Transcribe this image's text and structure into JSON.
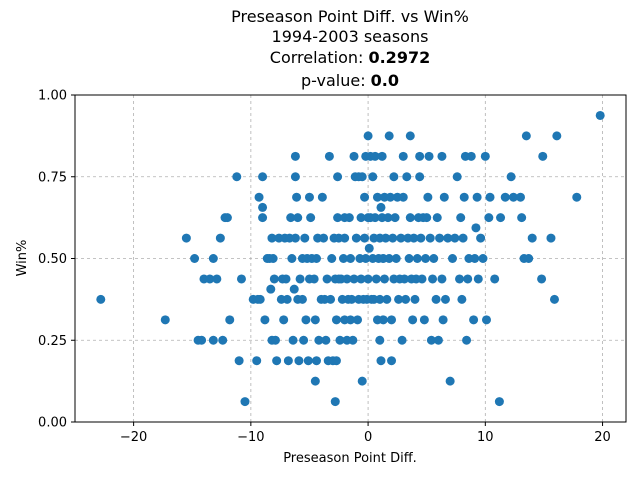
{
  "chart_data": {
    "type": "scatter",
    "title": "Preseason Point Diff. vs Win%",
    "subtitle": "1994-2003 seasons",
    "correlation_label": "Correlation: ",
    "correlation_value": "0.2972",
    "pvalue_label": "p-value: ",
    "pvalue_value": "0.0",
    "xlabel": "Preseason Point Diff.",
    "ylabel": "Win%",
    "xlim": [
      -25,
      22
    ],
    "ylim": [
      0.0,
      1.0
    ],
    "xticks": [
      -20,
      -10,
      0,
      10,
      20
    ],
    "xtick_labels": [
      "−20",
      "−10",
      "0",
      "10",
      "20"
    ],
    "yticks": [
      0.0,
      0.25,
      0.5,
      0.75,
      1.0
    ],
    "ytick_labels": [
      "0.00",
      "0.25",
      "0.50",
      "0.75",
      "1.00"
    ],
    "grid": true,
    "marker_color": "#1f77b4",
    "points": [
      [
        -22.8,
        0.375
      ],
      [
        -17.3,
        0.3125
      ],
      [
        -15.5,
        0.5625
      ],
      [
        -14.8,
        0.5
      ],
      [
        -14.5,
        0.25
      ],
      [
        -14.2,
        0.25
      ],
      [
        -14.0,
        0.4375
      ],
      [
        -13.5,
        0.4375
      ],
      [
        -13.2,
        0.5
      ],
      [
        -13.2,
        0.25
      ],
      [
        -12.9,
        0.4375
      ],
      [
        -12.6,
        0.5625
      ],
      [
        -12.4,
        0.25
      ],
      [
        -12.2,
        0.625
      ],
      [
        -12.0,
        0.625
      ],
      [
        -11.8,
        0.3125
      ],
      [
        -11.2,
        0.75
      ],
      [
        -11.0,
        0.1875
      ],
      [
        -10.8,
        0.4375
      ],
      [
        -10.5,
        0.0625
      ],
      [
        -9.8,
        0.375
      ],
      [
        -9.5,
        0.1875
      ],
      [
        -9.4,
        0.375
      ],
      [
        -9.3,
        0.6875
      ],
      [
        -9.2,
        0.375
      ],
      [
        -9.0,
        0.75
      ],
      [
        -9.0,
        0.625
      ],
      [
        -9.0,
        0.65625
      ],
      [
        -8.8,
        0.3125
      ],
      [
        -8.6,
        0.5
      ],
      [
        -8.4,
        0.5
      ],
      [
        -8.3,
        0.40625
      ],
      [
        -8.2,
        0.5625
      ],
      [
        -8.2,
        0.25
      ],
      [
        -8.1,
        0.5
      ],
      [
        -8.0,
        0.4375
      ],
      [
        -7.9,
        0.25
      ],
      [
        -7.8,
        0.1875
      ],
      [
        -7.6,
        0.5625
      ],
      [
        -7.4,
        0.375
      ],
      [
        -7.3,
        0.4375
      ],
      [
        -7.2,
        0.3125
      ],
      [
        -7.1,
        0.5625
      ],
      [
        -7.0,
        0.4375
      ],
      [
        -6.9,
        0.375
      ],
      [
        -6.8,
        0.1875
      ],
      [
        -6.7,
        0.5625
      ],
      [
        -6.6,
        0.625
      ],
      [
        -6.5,
        0.5
      ],
      [
        -6.4,
        0.25
      ],
      [
        -6.3,
        0.40625
      ],
      [
        -6.2,
        0.8125
      ],
      [
        -6.2,
        0.75
      ],
      [
        -6.2,
        0.5625
      ],
      [
        -6.1,
        0.6875
      ],
      [
        -6.0,
        0.625
      ],
      [
        -6.0,
        0.375
      ],
      [
        -5.9,
        0.1875
      ],
      [
        -5.8,
        0.4375
      ],
      [
        -5.6,
        0.375
      ],
      [
        -5.6,
        0.5
      ],
      [
        -5.5,
        0.25
      ],
      [
        -5.4,
        0.5625
      ],
      [
        -5.3,
        0.3125
      ],
      [
        -5.2,
        0.5
      ],
      [
        -5.1,
        0.1875
      ],
      [
        -5.0,
        0.4375
      ],
      [
        -5.0,
        0.6875
      ],
      [
        -4.9,
        0.625
      ],
      [
        -4.8,
        0.5
      ],
      [
        -4.6,
        0.4375
      ],
      [
        -4.5,
        0.3125
      ],
      [
        -4.5,
        0.125
      ],
      [
        -4.4,
        0.5
      ],
      [
        -4.4,
        0.1875
      ],
      [
        -4.3,
        0.5625
      ],
      [
        -4.2,
        0.25
      ],
      [
        -4.0,
        0.375
      ],
      [
        -3.9,
        0.6875
      ],
      [
        -3.8,
        0.5625
      ],
      [
        -3.7,
        0.375
      ],
      [
        -3.6,
        0.25
      ],
      [
        -3.5,
        0.4375
      ],
      [
        -3.4,
        0.1875
      ],
      [
        -3.3,
        0.8125
      ],
      [
        -3.2,
        0.375
      ],
      [
        -3.1,
        0.5
      ],
      [
        -3.0,
        0.1875
      ],
      [
        -2.9,
        0.5625
      ],
      [
        -2.8,
        0.4375
      ],
      [
        -2.8,
        0.0625
      ],
      [
        -2.7,
        0.1875
      ],
      [
        -2.7,
        0.3125
      ],
      [
        -2.6,
        0.625
      ],
      [
        -2.6,
        0.75
      ],
      [
        -2.5,
        0.4375
      ],
      [
        -2.5,
        0.5625
      ],
      [
        -2.4,
        0.25
      ],
      [
        -2.3,
        0.4375
      ],
      [
        -2.2,
        0.375
      ],
      [
        -2.1,
        0.5
      ],
      [
        -2.0,
        0.625
      ],
      [
        -2.0,
        0.3125
      ],
      [
        -2.0,
        0.5625
      ],
      [
        -1.8,
        0.4375
      ],
      [
        -1.8,
        0.25
      ],
      [
        -1.7,
        0.375
      ],
      [
        -1.6,
        0.625
      ],
      [
        -1.5,
        0.5
      ],
      [
        -1.5,
        0.3125
      ],
      [
        -1.4,
        0.375
      ],
      [
        -1.3,
        0.25
      ],
      [
        -1.2,
        0.4375
      ],
      [
        -1.2,
        0.8125
      ],
      [
        -1.1,
        0.75
      ],
      [
        -1.0,
        0.5625
      ],
      [
        -0.9,
        0.3125
      ],
      [
        -0.8,
        0.75
      ],
      [
        -0.8,
        0.375
      ],
      [
        -0.7,
        0.5
      ],
      [
        -0.6,
        0.625
      ],
      [
        -0.6,
        0.4375
      ],
      [
        -0.5,
        0.75
      ],
      [
        -0.5,
        0.125
      ],
      [
        -0.4,
        0.375
      ],
      [
        -0.3,
        0.5625
      ],
      [
        -0.3,
        0.6875
      ],
      [
        -0.2,
        0.8125
      ],
      [
        -0.2,
        0.5
      ],
      [
        -0.1,
        0.375
      ],
      [
        0.0,
        0.875
      ],
      [
        0.0,
        0.625
      ],
      [
        0.0,
        0.4375
      ],
      [
        0.1,
        0.53125
      ],
      [
        0.2,
        0.8125
      ],
      [
        0.2,
        0.625
      ],
      [
        0.3,
        0.375
      ],
      [
        0.4,
        0.5
      ],
      [
        0.4,
        0.75
      ],
      [
        0.5,
        0.5625
      ],
      [
        0.5,
        0.375
      ],
      [
        0.6,
        0.8125
      ],
      [
        0.6,
        0.625
      ],
      [
        0.7,
        0.4375
      ],
      [
        0.8,
        0.6875
      ],
      [
        0.8,
        0.3125
      ],
      [
        0.9,
        0.5
      ],
      [
        1.0,
        0.375
      ],
      [
        1.0,
        0.5625
      ],
      [
        1.0,
        0.25
      ],
      [
        1.1,
        0.65625
      ],
      [
        1.1,
        0.1875
      ],
      [
        1.2,
        0.8125
      ],
      [
        1.2,
        0.625
      ],
      [
        1.3,
        0.5
      ],
      [
        1.3,
        0.3125
      ],
      [
        1.4,
        0.6875
      ],
      [
        1.4,
        0.4375
      ],
      [
        1.5,
        0.5625
      ],
      [
        1.6,
        0.375
      ],
      [
        1.7,
        0.625
      ],
      [
        1.8,
        0.5
      ],
      [
        1.8,
        0.875
      ],
      [
        1.9,
        0.6875
      ],
      [
        2.0,
        0.3125
      ],
      [
        2.0,
        0.1875
      ],
      [
        2.1,
        0.5625
      ],
      [
        2.2,
        0.4375
      ],
      [
        2.2,
        0.75
      ],
      [
        2.3,
        0.625
      ],
      [
        2.4,
        0.5
      ],
      [
        2.5,
        0.6875
      ],
      [
        2.6,
        0.375
      ],
      [
        2.7,
        0.4375
      ],
      [
        2.8,
        0.5625
      ],
      [
        2.9,
        0.25
      ],
      [
        3.0,
        0.6875
      ],
      [
        3.0,
        0.8125
      ],
      [
        3.1,
        0.4375
      ],
      [
        3.2,
        0.375
      ],
      [
        3.3,
        0.75
      ],
      [
        3.4,
        0.5625
      ],
      [
        3.5,
        0.5
      ],
      [
        3.6,
        0.875
      ],
      [
        3.6,
        0.625
      ],
      [
        3.7,
        0.4375
      ],
      [
        3.8,
        0.3125
      ],
      [
        3.9,
        0.5625
      ],
      [
        4.0,
        0.375
      ],
      [
        4.1,
        0.4375
      ],
      [
        4.2,
        0.5
      ],
      [
        4.3,
        0.625
      ],
      [
        4.4,
        0.75
      ],
      [
        4.4,
        0.8125
      ],
      [
        4.5,
        0.5625
      ],
      [
        4.6,
        0.4375
      ],
      [
        4.7,
        0.625
      ],
      [
        4.8,
        0.3125
      ],
      [
        4.9,
        0.5
      ],
      [
        5.0,
        0.625
      ],
      [
        5.1,
        0.6875
      ],
      [
        5.2,
        0.8125
      ],
      [
        5.3,
        0.5625
      ],
      [
        5.4,
        0.25
      ],
      [
        5.5,
        0.4375
      ],
      [
        5.6,
        0.5
      ],
      [
        5.8,
        0.375
      ],
      [
        5.9,
        0.625
      ],
      [
        6.0,
        0.25
      ],
      [
        6.1,
        0.5625
      ],
      [
        6.3,
        0.8125
      ],
      [
        6.3,
        0.4375
      ],
      [
        6.4,
        0.3125
      ],
      [
        6.5,
        0.6875
      ],
      [
        6.6,
        0.375
      ],
      [
        6.8,
        0.5625
      ],
      [
        7.0,
        0.125
      ],
      [
        7.2,
        0.5
      ],
      [
        7.4,
        0.5625
      ],
      [
        7.6,
        0.75
      ],
      [
        7.8,
        0.4375
      ],
      [
        7.9,
        0.625
      ],
      [
        8.0,
        0.375
      ],
      [
        8.1,
        0.5625
      ],
      [
        8.2,
        0.6875
      ],
      [
        8.3,
        0.8125
      ],
      [
        8.4,
        0.25
      ],
      [
        8.5,
        0.4375
      ],
      [
        8.6,
        0.5
      ],
      [
        8.8,
        0.8125
      ],
      [
        9.0,
        0.3125
      ],
      [
        9.1,
        0.5
      ],
      [
        9.2,
        0.59375
      ],
      [
        9.3,
        0.6875
      ],
      [
        9.4,
        0.4375
      ],
      [
        9.6,
        0.5625
      ],
      [
        9.8,
        0.5
      ],
      [
        10.0,
        0.8125
      ],
      [
        10.1,
        0.3125
      ],
      [
        10.3,
        0.625
      ],
      [
        10.4,
        0.6875
      ],
      [
        10.8,
        0.4375
      ],
      [
        11.2,
        0.0625
      ],
      [
        11.3,
        0.625
      ],
      [
        11.7,
        0.6875
      ],
      [
        12.2,
        0.75
      ],
      [
        12.4,
        0.6875
      ],
      [
        13.0,
        0.6875
      ],
      [
        13.1,
        0.625
      ],
      [
        13.3,
        0.5
      ],
      [
        13.5,
        0.875
      ],
      [
        13.7,
        0.5
      ],
      [
        14.0,
        0.5625
      ],
      [
        14.8,
        0.4375
      ],
      [
        14.9,
        0.8125
      ],
      [
        15.6,
        0.5625
      ],
      [
        15.9,
        0.375
      ],
      [
        16.1,
        0.875
      ],
      [
        17.8,
        0.6875
      ],
      [
        19.8,
        0.9375
      ]
    ]
  }
}
